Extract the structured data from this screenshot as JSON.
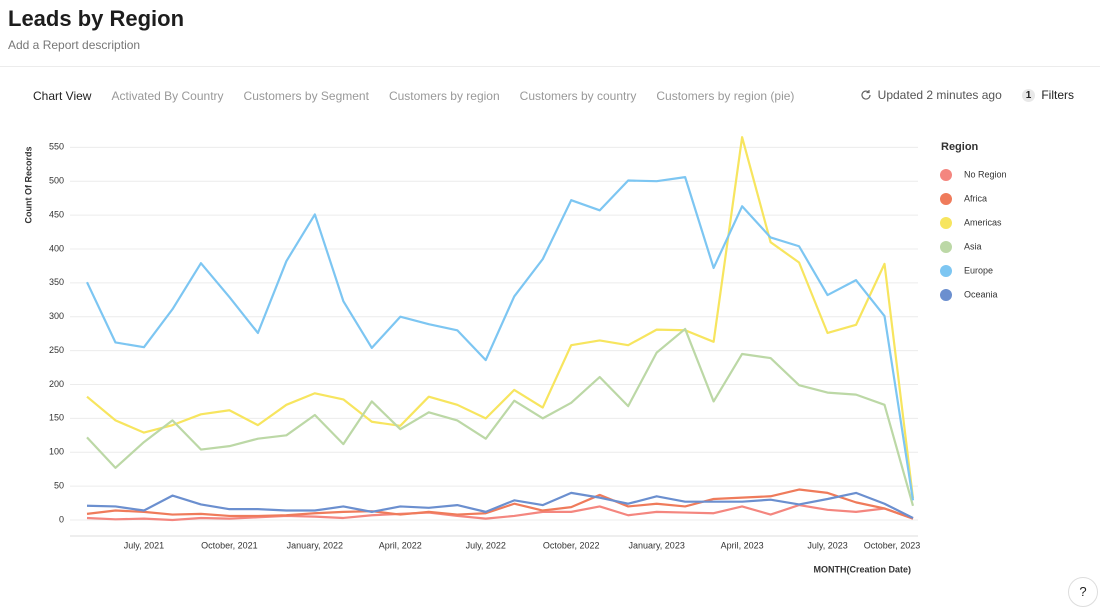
{
  "header": {
    "title": "Leads by Region",
    "description": "Add a Report description"
  },
  "tabs": [
    "Chart View",
    "Activated By Country",
    "Customers by Segment",
    "Customers by region",
    "Customers by country",
    "Customers by region (pie)"
  ],
  "status": {
    "updated": "Updated 2 minutes ago",
    "filter_count": "1",
    "filters": "Filters"
  },
  "help": "?",
  "chart_data": {
    "type": "line",
    "ylabel": "Count Of Records",
    "xlabel": "MONTH(Creation Date)",
    "legend_title": "Region",
    "legend": "right",
    "grid": true,
    "categories": [
      null,
      null,
      "July, 2021",
      null,
      null,
      "October, 2021",
      null,
      null,
      "January, 2022",
      null,
      null,
      "April, 2022",
      null,
      null,
      "July, 2022",
      null,
      null,
      "October, 2022",
      null,
      null,
      "January, 2023",
      null,
      null,
      "April, 2023",
      null,
      null,
      "July, 2023",
      null,
      null,
      "October, 2023"
    ],
    "ylim": [
      0,
      580
    ],
    "yticks": [
      0,
      50,
      100,
      150,
      200,
      250,
      300,
      350,
      400,
      450,
      500,
      550
    ],
    "series": [
      {
        "name": "No Region",
        "color": "#f4867f",
        "values": [
          3,
          1,
          2,
          0,
          3,
          2,
          4,
          6,
          5,
          3,
          7,
          9,
          11,
          6,
          2,
          6,
          12,
          12,
          20,
          7,
          12,
          11,
          10,
          20,
          8,
          22,
          15,
          12,
          17,
          2
        ]
      },
      {
        "name": "Africa",
        "color": "#ef7b5b",
        "values": [
          9,
          14,
          12,
          8,
          9,
          6,
          6,
          7,
          10,
          12,
          13,
          8,
          12,
          8,
          10,
          24,
          14,
          19,
          37,
          20,
          24,
          20,
          31,
          33,
          35,
          45,
          40,
          26,
          17,
          2
        ]
      },
      {
        "name": "Americas",
        "color": "#f7e55f",
        "values": [
          182,
          147,
          129,
          140,
          156,
          162,
          140,
          170,
          187,
          178,
          145,
          139,
          182,
          170,
          150,
          192,
          166,
          258,
          265,
          258,
          281,
          280,
          263,
          565,
          410,
          380,
          276,
          288,
          378,
          32
        ]
      },
      {
        "name": "Asia",
        "color": "#bcd8a6",
        "values": [
          122,
          77,
          115,
          147,
          104,
          109,
          120,
          125,
          155,
          112,
          175,
          134,
          159,
          147,
          120,
          176,
          150,
          173,
          211,
          168,
          247,
          282,
          175,
          245,
          239,
          199,
          188,
          185,
          170,
          21
        ]
      },
      {
        "name": "Europe",
        "color": "#7dc6f2",
        "values": [
          351,
          262,
          255,
          311,
          379,
          329,
          276,
          382,
          451,
          323,
          254,
          300,
          289,
          280,
          236,
          330,
          385,
          472,
          457,
          501,
          500,
          506,
          372,
          463,
          417,
          404,
          332,
          354,
          301,
          29
        ]
      },
      {
        "name": "Oceania",
        "color": "#6b8fcf",
        "values": [
          21,
          20,
          14,
          36,
          23,
          16,
          16,
          14,
          14,
          20,
          12,
          20,
          18,
          22,
          12,
          29,
          22,
          40,
          33,
          24,
          35,
          27,
          27,
          27,
          30,
          23,
          31,
          40,
          24,
          3
        ]
      }
    ]
  }
}
